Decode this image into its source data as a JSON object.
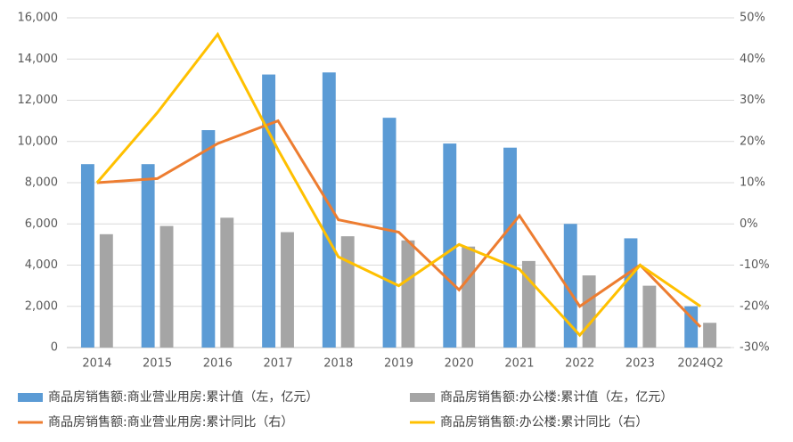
{
  "chart_data": {
    "type": "bar-line",
    "categories": [
      "2014",
      "2015",
      "2016",
      "2017",
      "2018",
      "2019",
      "2020",
      "2021",
      "2022",
      "2023",
      "2024Q2"
    ],
    "series": [
      {
        "name": "商品房销售额:商业营业用房:累计值（左，亿元）",
        "type": "bar",
        "color": "#5b9bd5",
        "values": [
          8900,
          8900,
          10550,
          13250,
          13350,
          11150,
          9900,
          9700,
          6000,
          5300,
          2000
        ]
      },
      {
        "name": "商品房销售额:办公楼:累计值（左，亿元）",
        "type": "bar",
        "color": "#a5a5a5",
        "values": [
          5500,
          5900,
          6300,
          5600,
          5400,
          5200,
          4900,
          4200,
          3500,
          3000,
          1200
        ]
      },
      {
        "name": "商品房销售额:商业营业用房:累计同比（右）",
        "type": "line",
        "axis": "y2",
        "color": "#ed7d31",
        "values": [
          10,
          11,
          19.5,
          25,
          1,
          -2,
          -16,
          2,
          -20,
          -10,
          -25
        ]
      },
      {
        "name": "商品房销售额:办公楼:累计同比（右）",
        "type": "line",
        "axis": "y2",
        "color": "#ffc000",
        "values": [
          10,
          27,
          46,
          18,
          -8,
          -15,
          -5,
          -11,
          -27,
          -10,
          -20
        ]
      }
    ],
    "ylim": [
      0,
      16000
    ],
    "yticks": [
      0,
      {
        "value": 2000,
        "label": "2,000"
      },
      {
        "value": 4000,
        "label": "4,000"
      },
      {
        "value": 6000,
        "label": "6,000"
      },
      {
        "value": 8000,
        "label": "8,000"
      },
      {
        "value": 10000,
        "label": "10,000"
      },
      {
        "value": 12000,
        "label": "12,000"
      },
      {
        "value": 14000,
        "label": "14,000"
      },
      {
        "value": 16000,
        "label": "16,000"
      }
    ],
    "y2lim": [
      -30,
      50
    ],
    "y2ticks": [
      {
        "value": -30,
        "label": "-30%"
      },
      {
        "value": -20,
        "label": "-20%"
      },
      {
        "value": -10,
        "label": "-10%"
      },
      {
        "value": 0,
        "label": "0%"
      },
      {
        "value": 10,
        "label": "10%"
      },
      {
        "value": 20,
        "label": "20%"
      },
      {
        "value": 30,
        "label": "30%"
      },
      {
        "value": 40,
        "label": "40%"
      },
      {
        "value": 50,
        "label": "50%"
      }
    ],
    "grid": true
  }
}
